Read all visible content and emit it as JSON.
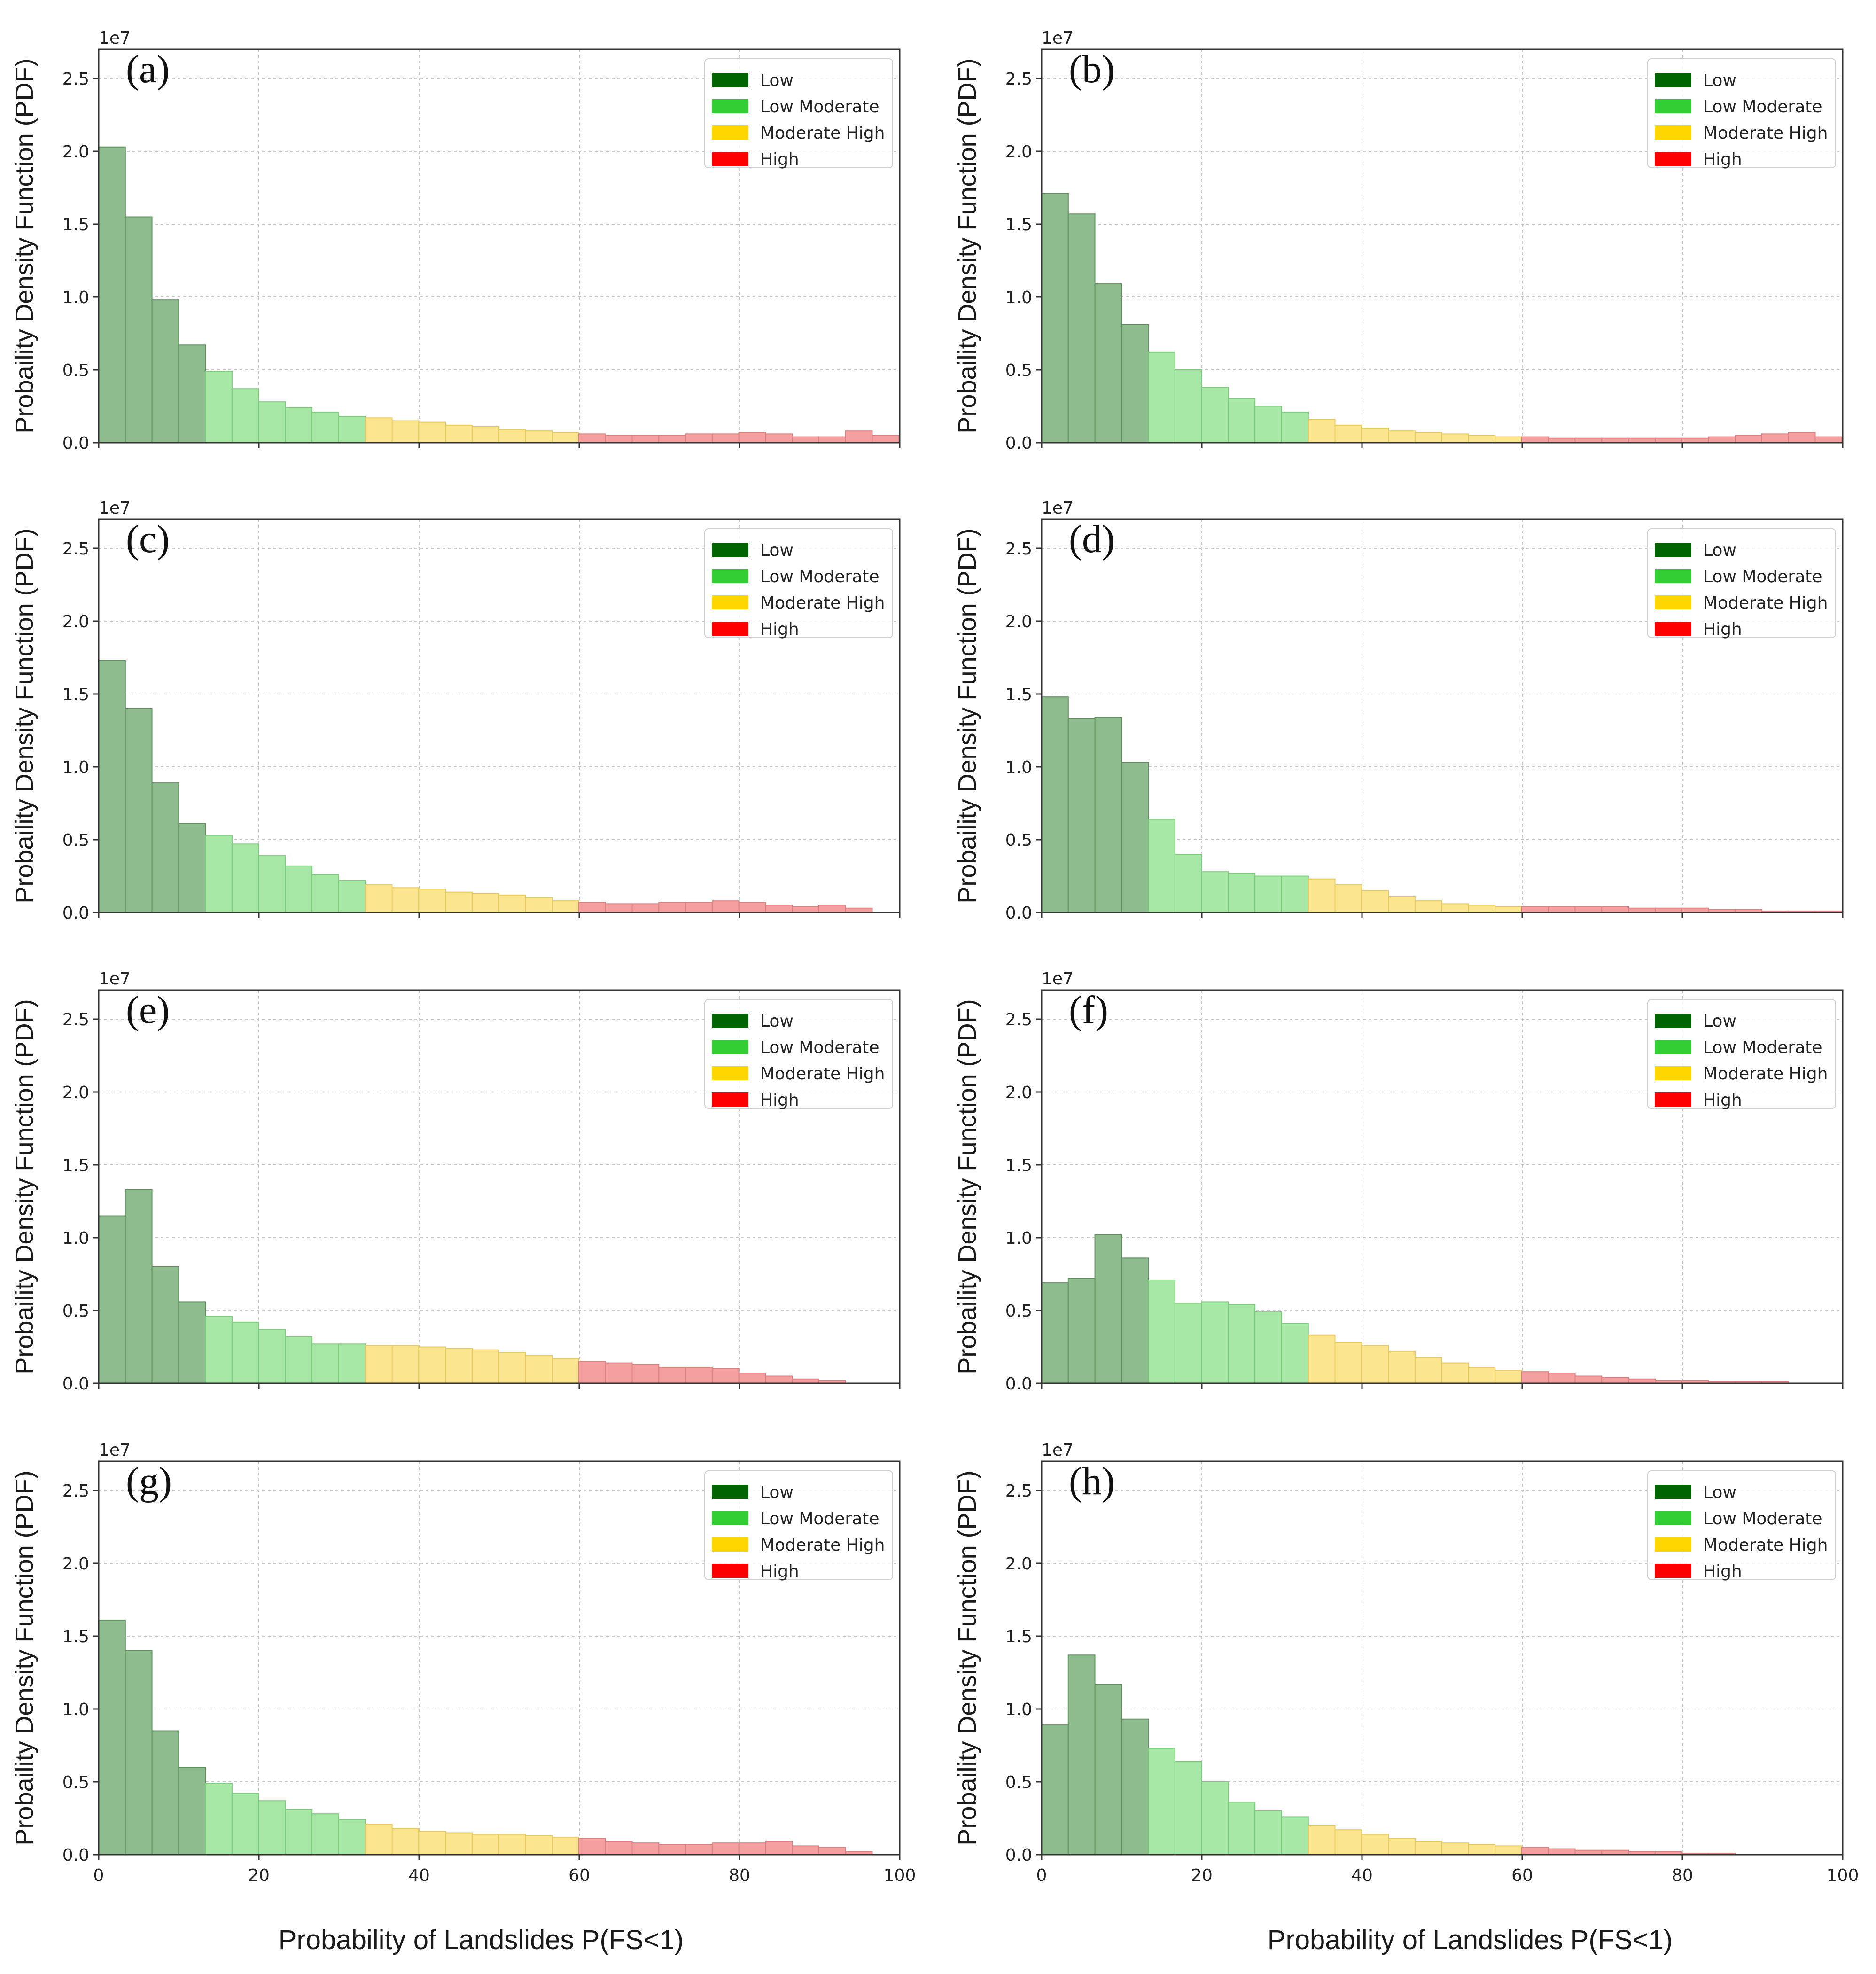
{
  "figure": {
    "xlabel_left": "Probability of Landslides P(FS<1)",
    "xlabel_right": "Probability of Landslides P(FS<1)"
  },
  "chart_data": [
    {
      "type": "bar",
      "panel": "(a)",
      "ylabel": "Probaility Density Function (PDF)",
      "exponent": "1e7",
      "xlim": [
        0,
        100
      ],
      "ylim": [
        0,
        2.7
      ],
      "xticks": [
        "0",
        "20",
        "40",
        "60",
        "80",
        "100"
      ],
      "yticks": [
        "0.0",
        "0.5",
        "1.0",
        "1.5",
        "2.0",
        "2.5"
      ],
      "grid": true,
      "legend_position": "top-right",
      "legend": [
        {
          "label": "Low",
          "color": "#006400"
        },
        {
          "label": "Low Moderate",
          "color": "#32cd32"
        },
        {
          "label": "Moderate High",
          "color": "#ffd700"
        },
        {
          "label": "High",
          "color": "#ff0000"
        }
      ],
      "bin_width": 3.33,
      "values": [
        2.03,
        1.55,
        0.98,
        0.67,
        0.49,
        0.37,
        0.28,
        0.24,
        0.21,
        0.18,
        0.17,
        0.15,
        0.14,
        0.12,
        0.11,
        0.09,
        0.08,
        0.07,
        0.06,
        0.05,
        0.05,
        0.05,
        0.06,
        0.06,
        0.07,
        0.06,
        0.04,
        0.04,
        0.08,
        0.05
      ]
    },
    {
      "type": "bar",
      "panel": "(b)",
      "ylabel": "Probaility Density Function (PDF)",
      "exponent": "1e7",
      "xlim": [
        0,
        100
      ],
      "ylim": [
        0,
        2.7
      ],
      "xticks": [
        "0",
        "20",
        "40",
        "60",
        "80",
        "100"
      ],
      "yticks": [
        "0.0",
        "0.5",
        "1.0",
        "1.5",
        "2.0",
        "2.5"
      ],
      "grid": true,
      "legend_position": "top-right",
      "legend": [
        {
          "label": "Low",
          "color": "#006400"
        },
        {
          "label": "Low Moderate",
          "color": "#32cd32"
        },
        {
          "label": "Moderate High",
          "color": "#ffd700"
        },
        {
          "label": "High",
          "color": "#ff0000"
        }
      ],
      "bin_width": 3.33,
      "values": [
        1.71,
        1.57,
        1.09,
        0.81,
        0.62,
        0.5,
        0.38,
        0.3,
        0.25,
        0.21,
        0.16,
        0.12,
        0.1,
        0.08,
        0.07,
        0.06,
        0.05,
        0.04,
        0.04,
        0.03,
        0.03,
        0.03,
        0.03,
        0.03,
        0.03,
        0.04,
        0.05,
        0.06,
        0.07,
        0.04
      ]
    },
    {
      "type": "bar",
      "panel": "(c)",
      "ylabel": "Probaility Density Function (PDF)",
      "exponent": "1e7",
      "xlim": [
        0,
        100
      ],
      "ylim": [
        0,
        2.7
      ],
      "xticks": [
        "0",
        "20",
        "40",
        "60",
        "80",
        "100"
      ],
      "yticks": [
        "0.0",
        "0.5",
        "1.0",
        "1.5",
        "2.0",
        "2.5"
      ],
      "grid": true,
      "legend_position": "top-right",
      "legend": [
        {
          "label": "Low",
          "color": "#006400"
        },
        {
          "label": "Low Moderate",
          "color": "#32cd32"
        },
        {
          "label": "Moderate High",
          "color": "#ffd700"
        },
        {
          "label": "High",
          "color": "#ff0000"
        }
      ],
      "bin_width": 3.33,
      "values": [
        1.73,
        1.4,
        0.89,
        0.61,
        0.53,
        0.47,
        0.39,
        0.32,
        0.26,
        0.22,
        0.19,
        0.17,
        0.16,
        0.14,
        0.13,
        0.12,
        0.1,
        0.08,
        0.07,
        0.06,
        0.06,
        0.07,
        0.07,
        0.08,
        0.07,
        0.05,
        0.04,
        0.05,
        0.03,
        0.0
      ]
    },
    {
      "type": "bar",
      "panel": "(d)",
      "ylabel": "Probaility Density Function (PDF)",
      "exponent": "1e7",
      "xlim": [
        0,
        100
      ],
      "ylim": [
        0,
        2.7
      ],
      "xticks": [
        "0",
        "20",
        "40",
        "60",
        "80",
        "100"
      ],
      "yticks": [
        "0.0",
        "0.5",
        "1.0",
        "1.5",
        "2.0",
        "2.5"
      ],
      "grid": true,
      "legend_position": "top-right",
      "legend": [
        {
          "label": "Low",
          "color": "#006400"
        },
        {
          "label": "Low Moderate",
          "color": "#32cd32"
        },
        {
          "label": "Moderate High",
          "color": "#ffd700"
        },
        {
          "label": "High",
          "color": "#ff0000"
        }
      ],
      "bin_width": 3.33,
      "values": [
        1.48,
        1.33,
        1.34,
        1.03,
        0.64,
        0.4,
        0.28,
        0.27,
        0.25,
        0.25,
        0.23,
        0.19,
        0.15,
        0.11,
        0.08,
        0.06,
        0.05,
        0.04,
        0.04,
        0.04,
        0.04,
        0.04,
        0.03,
        0.03,
        0.03,
        0.02,
        0.02,
        0.01,
        0.01,
        0.01
      ]
    },
    {
      "type": "bar",
      "panel": "(e)",
      "ylabel": "Probaility Density Function (PDF)",
      "exponent": "1e7",
      "xlim": [
        0,
        100
      ],
      "ylim": [
        0,
        2.7
      ],
      "xticks": [
        "0",
        "20",
        "40",
        "60",
        "80",
        "100"
      ],
      "yticks": [
        "0.0",
        "0.5",
        "1.0",
        "1.5",
        "2.0",
        "2.5"
      ],
      "grid": true,
      "legend_position": "top-right",
      "legend": [
        {
          "label": "Low",
          "color": "#006400"
        },
        {
          "label": "Low Moderate",
          "color": "#32cd32"
        },
        {
          "label": "Moderate High",
          "color": "#ffd700"
        },
        {
          "label": "High",
          "color": "#ff0000"
        }
      ],
      "bin_width": 3.33,
      "values": [
        1.15,
        1.33,
        0.8,
        0.56,
        0.46,
        0.42,
        0.37,
        0.32,
        0.27,
        0.27,
        0.26,
        0.26,
        0.25,
        0.24,
        0.23,
        0.21,
        0.19,
        0.17,
        0.15,
        0.14,
        0.13,
        0.11,
        0.11,
        0.1,
        0.07,
        0.05,
        0.03,
        0.02,
        0.0,
        0.0
      ]
    },
    {
      "type": "bar",
      "panel": "(f)",
      "ylabel": "Probaility Density Function (PDF)",
      "exponent": "1e7",
      "xlim": [
        0,
        100
      ],
      "ylim": [
        0,
        2.7
      ],
      "xticks": [
        "0",
        "20",
        "40",
        "60",
        "80",
        "100"
      ],
      "yticks": [
        "0.0",
        "0.5",
        "1.0",
        "1.5",
        "2.0",
        "2.5"
      ],
      "grid": true,
      "legend_position": "top-right",
      "legend": [
        {
          "label": "Low",
          "color": "#006400"
        },
        {
          "label": "Low Moderate",
          "color": "#32cd32"
        },
        {
          "label": "Moderate High",
          "color": "#ffd700"
        },
        {
          "label": "High",
          "color": "#ff0000"
        }
      ],
      "bin_width": 3.33,
      "values": [
        0.69,
        0.72,
        1.02,
        0.86,
        0.71,
        0.55,
        0.56,
        0.54,
        0.49,
        0.41,
        0.33,
        0.28,
        0.26,
        0.22,
        0.18,
        0.14,
        0.11,
        0.09,
        0.08,
        0.07,
        0.05,
        0.04,
        0.03,
        0.02,
        0.02,
        0.01,
        0.01,
        0.01,
        0.0,
        0.0
      ]
    },
    {
      "type": "bar",
      "panel": "(g)",
      "ylabel": "Probaility Density Function (PDF)",
      "exponent": "1e7",
      "xlim": [
        0,
        100
      ],
      "ylim": [
        0,
        2.7
      ],
      "xticks": [
        "0",
        "20",
        "40",
        "60",
        "80",
        "100"
      ],
      "yticks": [
        "0.0",
        "0.5",
        "1.0",
        "1.5",
        "2.0",
        "2.5"
      ],
      "grid": true,
      "legend_position": "top-right",
      "legend": [
        {
          "label": "Low",
          "color": "#006400"
        },
        {
          "label": "Low Moderate",
          "color": "#32cd32"
        },
        {
          "label": "Moderate High",
          "color": "#ffd700"
        },
        {
          "label": "High",
          "color": "#ff0000"
        }
      ],
      "bin_width": 3.33,
      "values": [
        1.61,
        1.4,
        0.85,
        0.6,
        0.49,
        0.42,
        0.37,
        0.31,
        0.28,
        0.24,
        0.21,
        0.18,
        0.16,
        0.15,
        0.14,
        0.14,
        0.13,
        0.12,
        0.11,
        0.09,
        0.08,
        0.07,
        0.07,
        0.08,
        0.08,
        0.09,
        0.06,
        0.05,
        0.02,
        0.0
      ]
    },
    {
      "type": "bar",
      "panel": "(h)",
      "ylabel": "Probaility Density Function (PDF)",
      "exponent": "1e7",
      "xlim": [
        0,
        100
      ],
      "ylim": [
        0,
        2.7
      ],
      "xticks": [
        "0",
        "20",
        "40",
        "60",
        "80",
        "100"
      ],
      "yticks": [
        "0.0",
        "0.5",
        "1.0",
        "1.5",
        "2.0",
        "2.5"
      ],
      "grid": true,
      "legend_position": "top-right",
      "legend": [
        {
          "label": "Low",
          "color": "#006400"
        },
        {
          "label": "Low Moderate",
          "color": "#32cd32"
        },
        {
          "label": "Moderate High",
          "color": "#ffd700"
        },
        {
          "label": "High",
          "color": "#ff0000"
        }
      ],
      "bin_width": 3.33,
      "values": [
        0.89,
        1.37,
        1.17,
        0.93,
        0.73,
        0.64,
        0.5,
        0.36,
        0.3,
        0.26,
        0.2,
        0.17,
        0.14,
        0.11,
        0.09,
        0.08,
        0.07,
        0.06,
        0.05,
        0.04,
        0.03,
        0.03,
        0.02,
        0.02,
        0.01,
        0.01,
        0.0,
        0.0,
        0.0,
        0.0
      ]
    }
  ]
}
